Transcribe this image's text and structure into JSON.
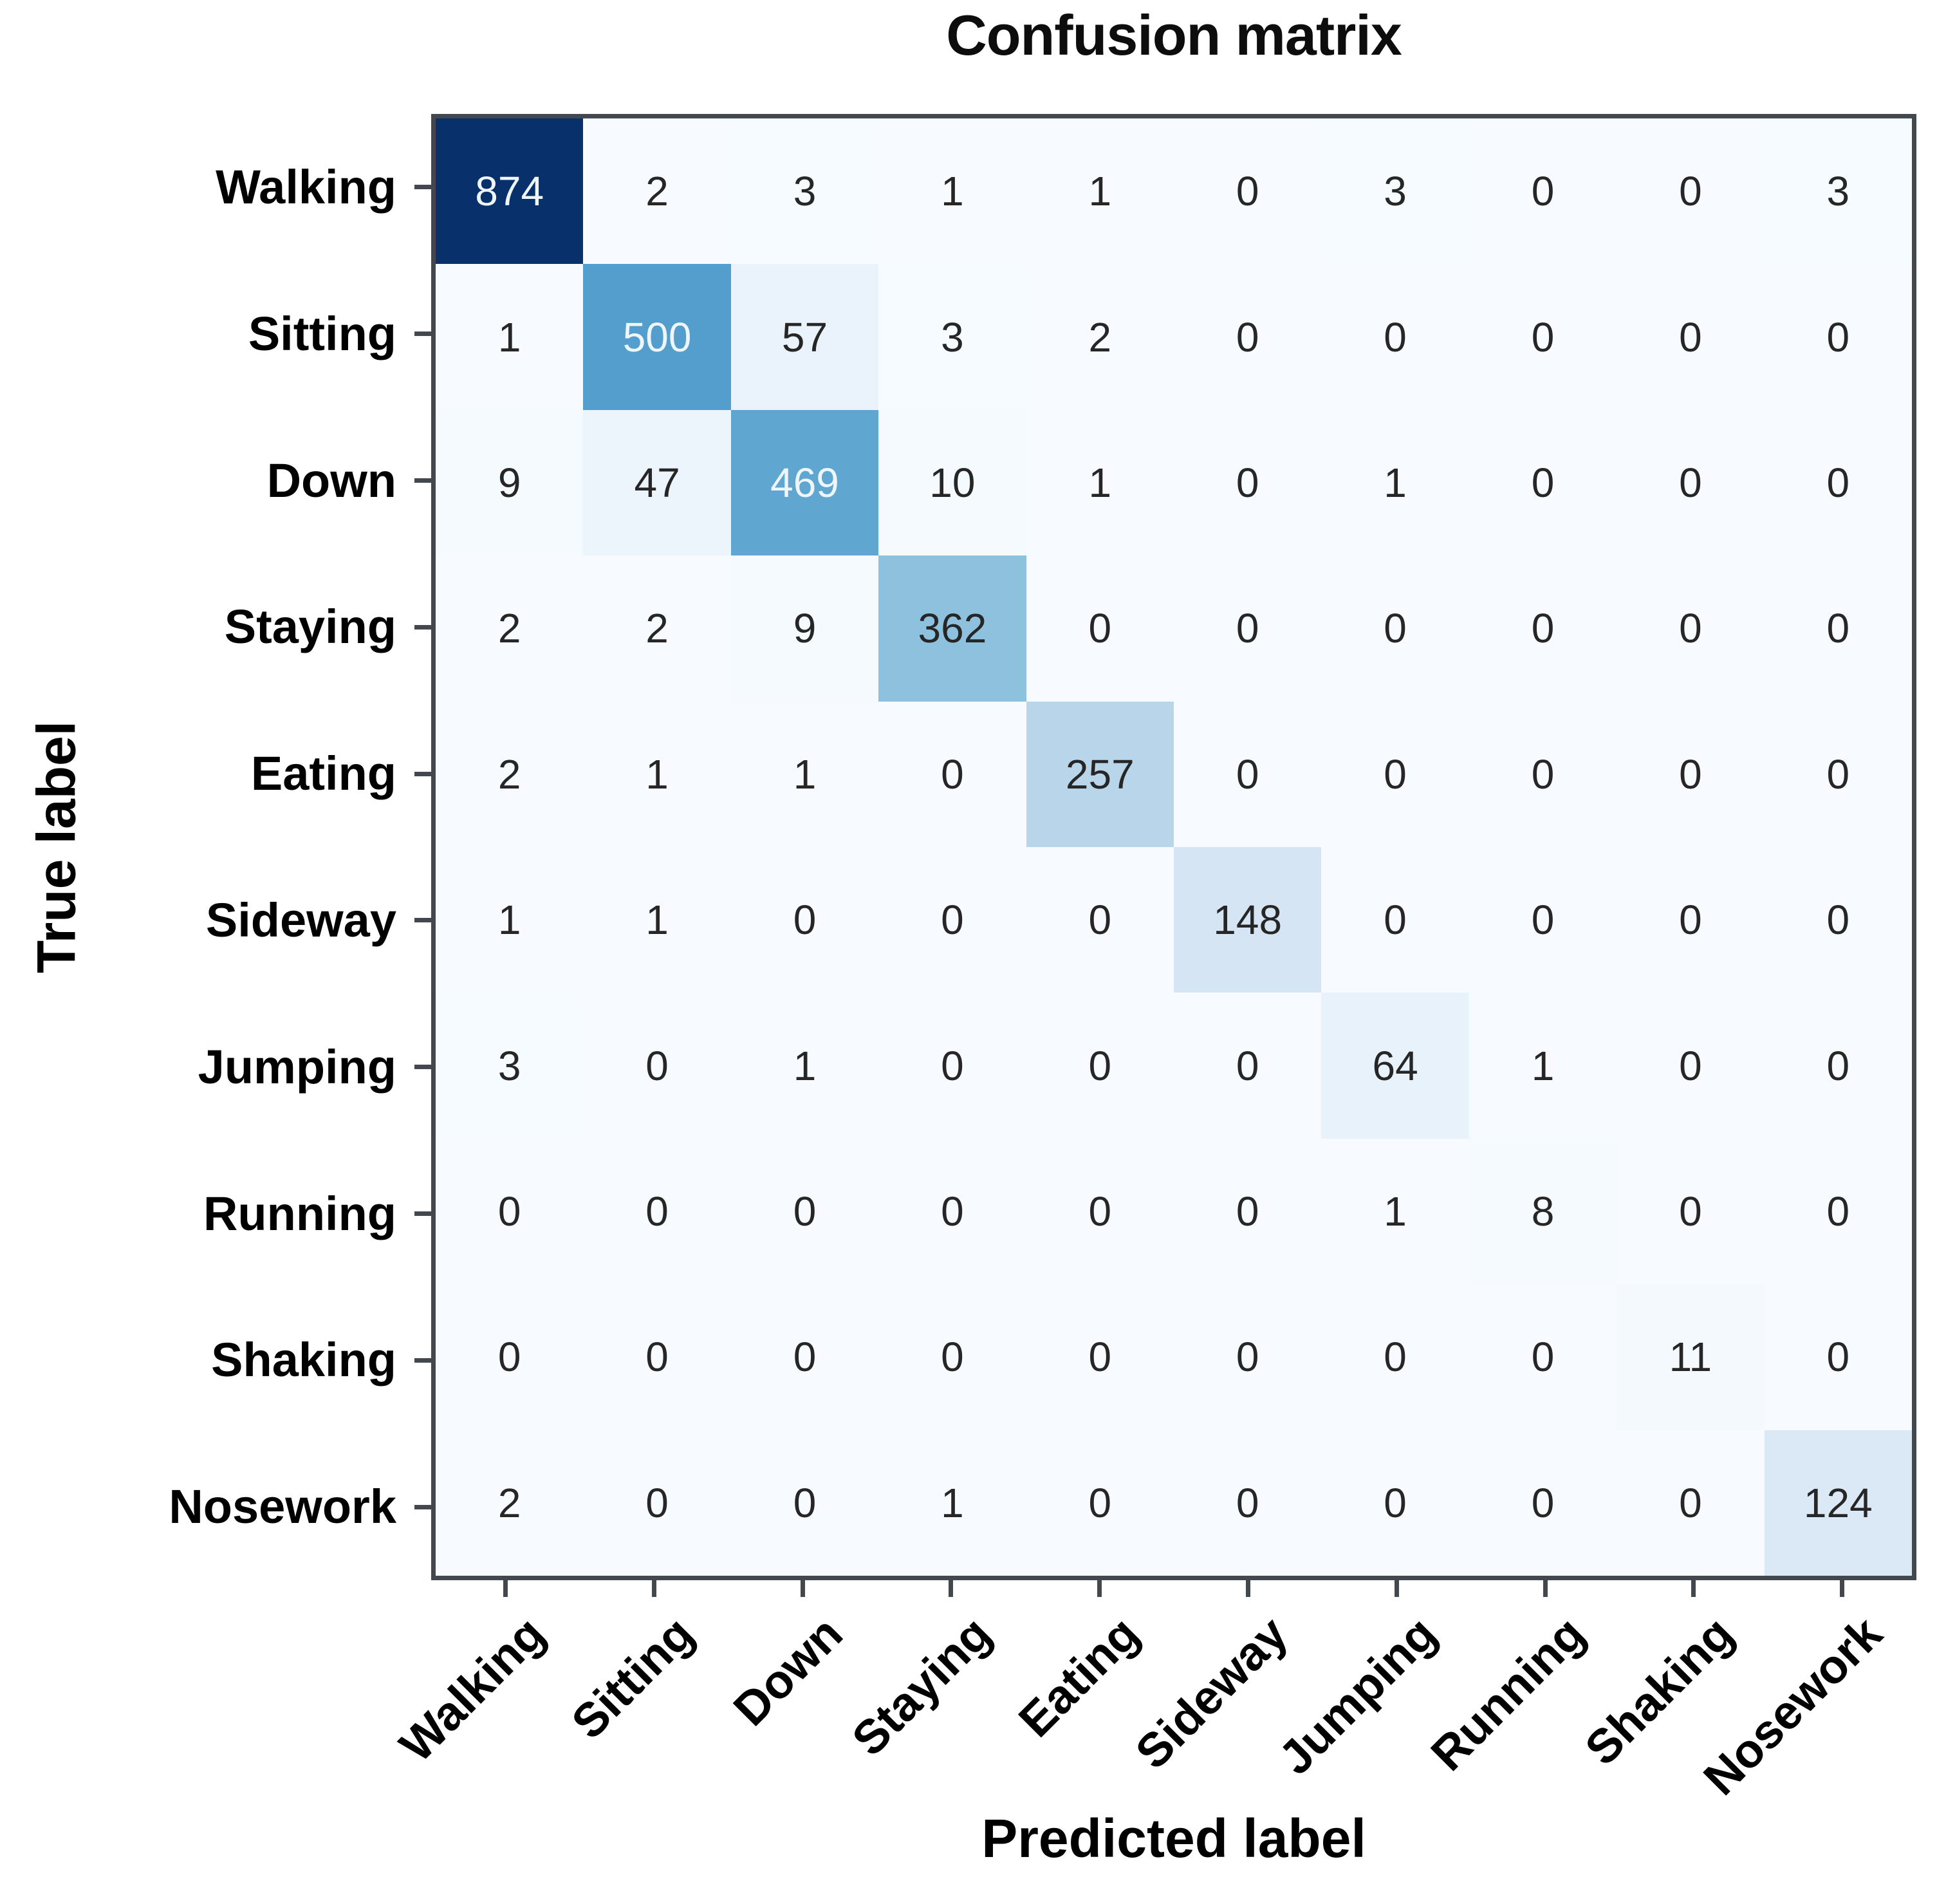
{
  "chart_data": {
    "type": "heatmap",
    "title": "Confusion matrix",
    "xlabel": "Predicted label",
    "ylabel": "True label",
    "x_tick_labels": [
      "Walking",
      "Sitting",
      "Down",
      "Staying",
      "Eating",
      "Sideway",
      "Jumping",
      "Running",
      "Shaking",
      "Nosework"
    ],
    "y_tick_labels": [
      "Walking",
      "Sitting",
      "Down",
      "Staying",
      "Eating",
      "Sideway",
      "Jumping",
      "Running",
      "Shaking",
      "Nosework"
    ],
    "matrix": [
      [
        874,
        2,
        3,
        1,
        1,
        0,
        3,
        0,
        0,
        3
      ],
      [
        1,
        500,
        57,
        3,
        2,
        0,
        0,
        0,
        0,
        0
      ],
      [
        9,
        47,
        469,
        10,
        1,
        0,
        1,
        0,
        0,
        0
      ],
      [
        2,
        2,
        9,
        362,
        0,
        0,
        0,
        0,
        0,
        0
      ],
      [
        2,
        1,
        1,
        0,
        257,
        0,
        0,
        0,
        0,
        0
      ],
      [
        1,
        1,
        0,
        0,
        0,
        148,
        0,
        0,
        0,
        0
      ],
      [
        3,
        0,
        1,
        0,
        0,
        0,
        64,
        1,
        0,
        0
      ],
      [
        0,
        0,
        0,
        0,
        0,
        0,
        1,
        8,
        0,
        0
      ],
      [
        0,
        0,
        0,
        0,
        0,
        0,
        0,
        0,
        11,
        0
      ],
      [
        2,
        0,
        0,
        1,
        0,
        0,
        0,
        0,
        0,
        124
      ]
    ],
    "vmin": 0,
    "vmax": 874,
    "grid": false,
    "colorbar": false,
    "legend_position": "none",
    "colormap": {
      "name": "Blues",
      "stops": [
        [
          0.0,
          "#f7fbff"
        ],
        [
          0.125,
          "#deebf7"
        ],
        [
          0.25,
          "#c6dbef"
        ],
        [
          0.375,
          "#9ecae1"
        ],
        [
          0.5,
          "#6baed6"
        ],
        [
          0.625,
          "#4292c6"
        ],
        [
          0.75,
          "#2171b5"
        ],
        [
          0.875,
          "#08519c"
        ],
        [
          1.0,
          "#08306b"
        ]
      ]
    },
    "colors": {
      "annotation_dark": "#262626",
      "annotation_light": "#eef5fb",
      "spine": "#43474e",
      "tick": "#43474e",
      "label_text": "#000000",
      "title_text": "#0d0d0d",
      "figure_background": "#ffffff"
    }
  }
}
